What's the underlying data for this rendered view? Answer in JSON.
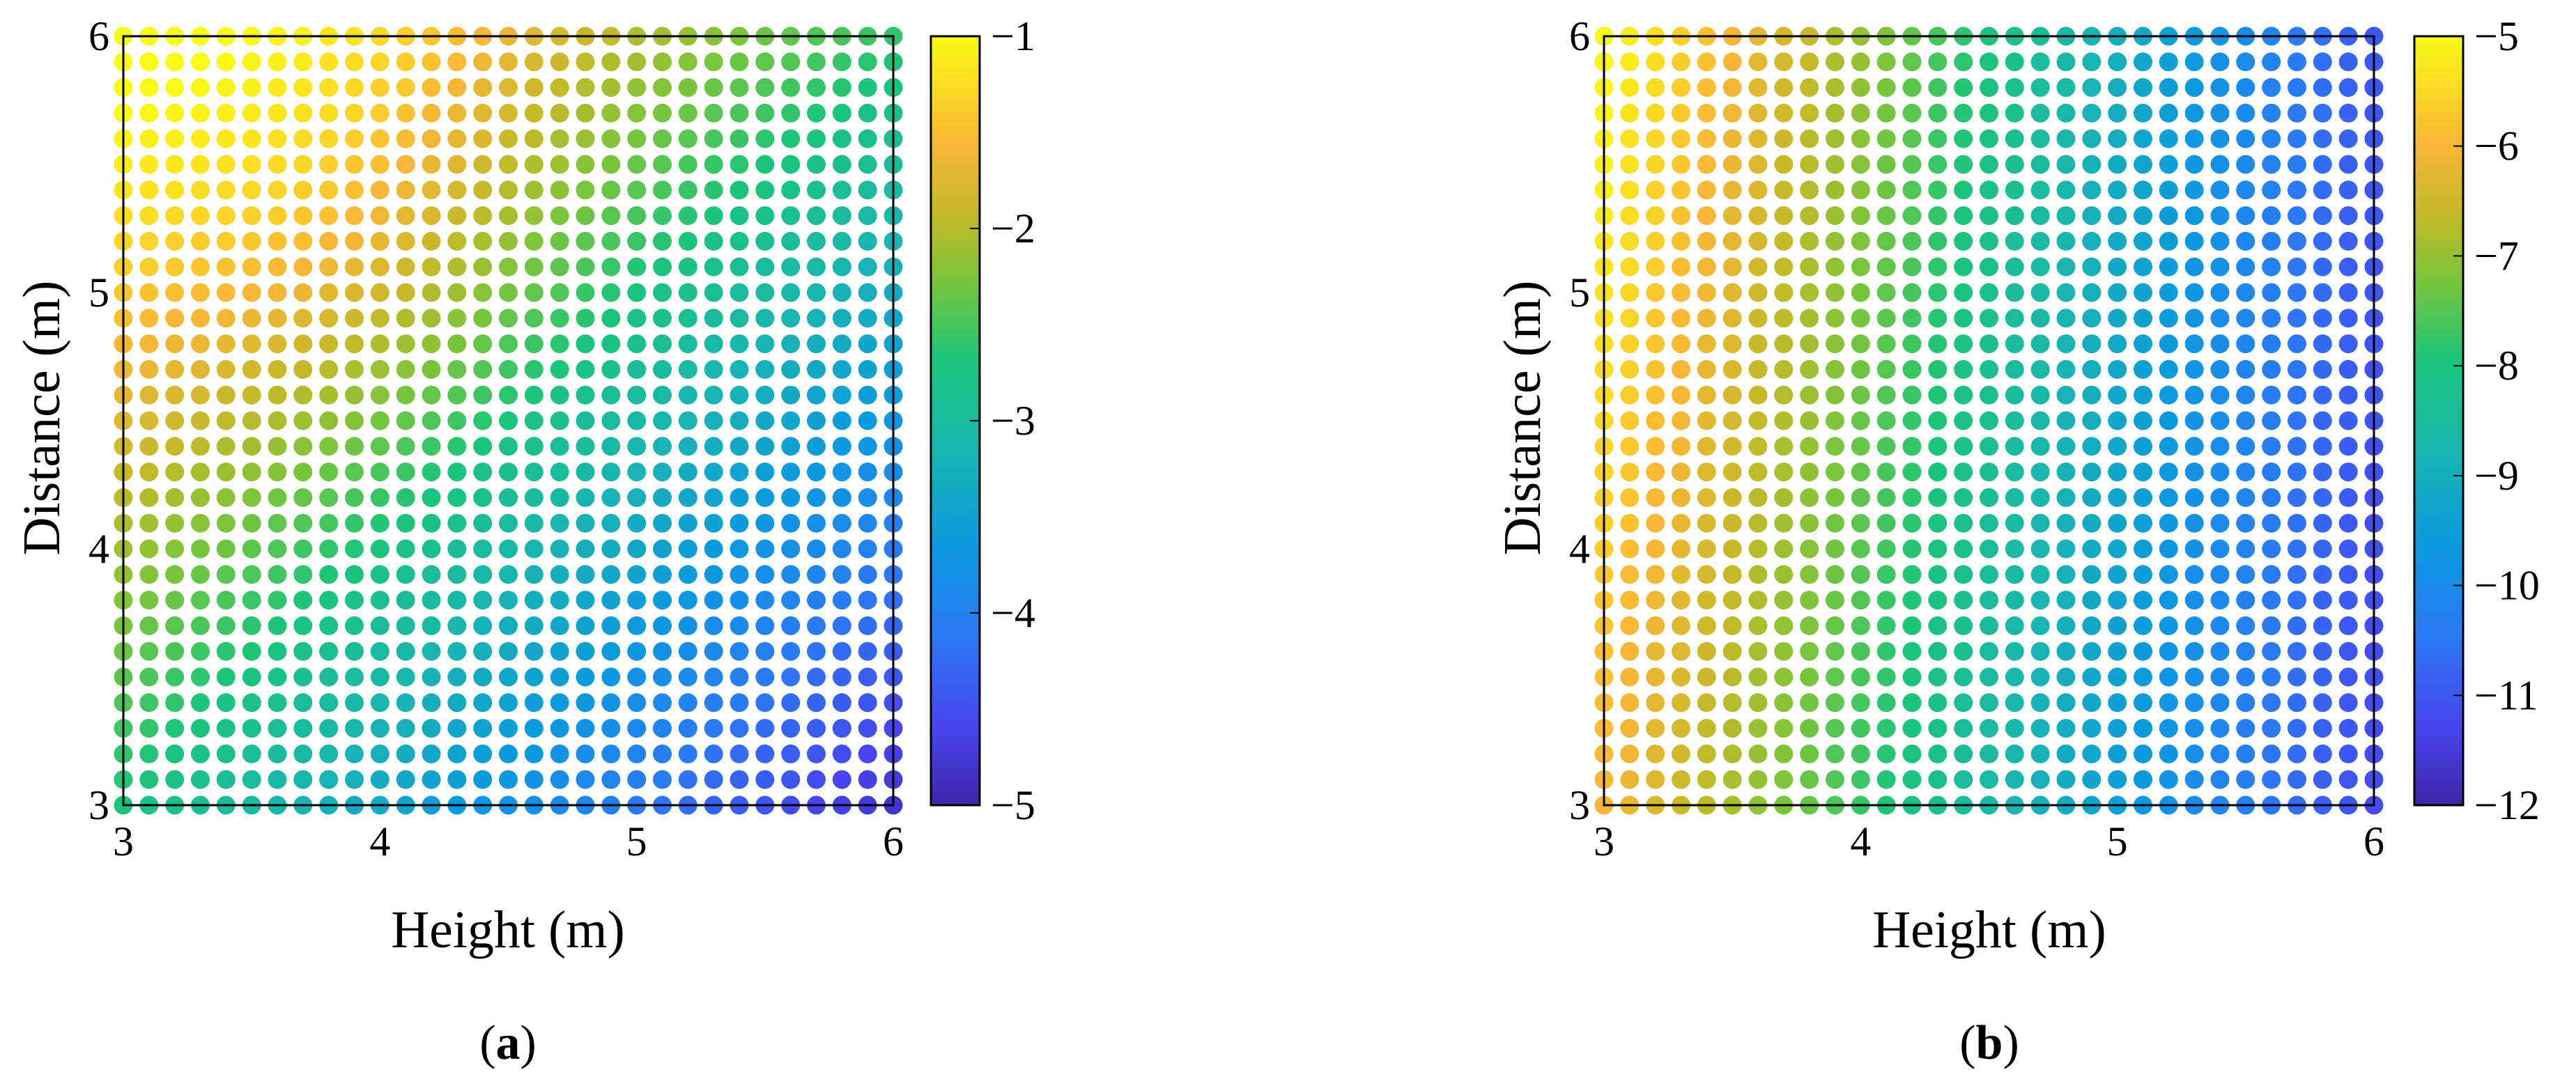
{
  "chart_data": [
    {
      "type": "scatter",
      "xlabel": "Height (m)",
      "ylabel": "Distance (m)",
      "xlim": [
        3,
        6
      ],
      "ylim": [
        3,
        6
      ],
      "x_ticks": [
        "3",
        "4",
        "5",
        "6"
      ],
      "y_ticks": [
        "3",
        "4",
        "5",
        "6"
      ],
      "grid": false,
      "x_values": [
        3.0,
        3.1,
        3.2,
        3.3,
        3.4,
        3.5,
        3.6,
        3.7,
        3.8,
        3.9,
        4.0,
        4.1,
        4.2,
        4.3,
        4.4,
        4.5,
        4.6,
        4.7,
        4.8,
        4.9,
        5.0,
        5.1,
        5.2,
        5.3,
        5.4,
        5.5,
        5.6,
        5.7,
        5.8,
        5.9,
        6.0
      ],
      "y_values": [
        3.0,
        3.1,
        3.2,
        3.3,
        3.4,
        3.5,
        3.6,
        3.7,
        3.8,
        3.9,
        4.0,
        4.1,
        4.2,
        4.3,
        4.4,
        4.5,
        4.6,
        4.7,
        4.8,
        4.9,
        5.0,
        5.1,
        5.2,
        5.3,
        5.4,
        5.5,
        5.6,
        5.7,
        5.8,
        5.9,
        6.0
      ],
      "color_values_at_grid_corners": {
        "x3_y3": -2.7,
        "x6_y3": -4.8,
        "x3_y6": -1.0,
        "x6_y6": -2.6,
        "x4_y5": -1.9,
        "x5_y4": -3.3
      },
      "colorbar": {
        "min": -5,
        "max": -1,
        "ticks": [
          "−1",
          "−2",
          "−3",
          "−4",
          "−5"
        ],
        "colormap": "parula"
      },
      "caption": {
        "open": "(",
        "letter": "a",
        "close": ")"
      }
    },
    {
      "type": "scatter",
      "xlabel": "Height (m)",
      "ylabel": "Distance (m)",
      "xlim": [
        3,
        6
      ],
      "ylim": [
        3,
        6
      ],
      "x_ticks": [
        "3",
        "4",
        "5",
        "6"
      ],
      "y_ticks": [
        "3",
        "4",
        "5",
        "6"
      ],
      "grid": false,
      "x_values": [
        3.0,
        3.1,
        3.2,
        3.3,
        3.4,
        3.5,
        3.6,
        3.7,
        3.8,
        3.9,
        4.0,
        4.1,
        4.2,
        4.3,
        4.4,
        4.5,
        4.6,
        4.7,
        4.8,
        4.9,
        5.0,
        5.1,
        5.2,
        5.3,
        5.4,
        5.5,
        5.6,
        5.7,
        5.8,
        5.9,
        6.0
      ],
      "y_values": [
        3.0,
        3.1,
        3.2,
        3.3,
        3.4,
        3.5,
        3.6,
        3.7,
        3.8,
        3.9,
        4.0,
        4.1,
        4.2,
        4.3,
        4.4,
        4.5,
        4.6,
        4.7,
        4.8,
        4.9,
        5.0,
        5.1,
        5.2,
        5.3,
        5.4,
        5.5,
        5.6,
        5.7,
        5.8,
        5.9,
        6.0
      ],
      "color_values_at_grid_corners": {
        "x3_y3": -6.0,
        "x6_y3": -11.2,
        "x3_y6": -5.0,
        "x6_y6": -12.0,
        "x4_y5": -7.9,
        "x5_y4": -9.4
      },
      "colorbar": {
        "min": -12,
        "max": -5,
        "ticks": [
          "−5",
          "−6",
          "−7",
          "−8",
          "−9",
          "−10",
          "−11",
          "−12"
        ],
        "colormap": "parula"
      },
      "caption": {
        "open": "(",
        "letter": "b",
        "close": ")"
      }
    }
  ]
}
